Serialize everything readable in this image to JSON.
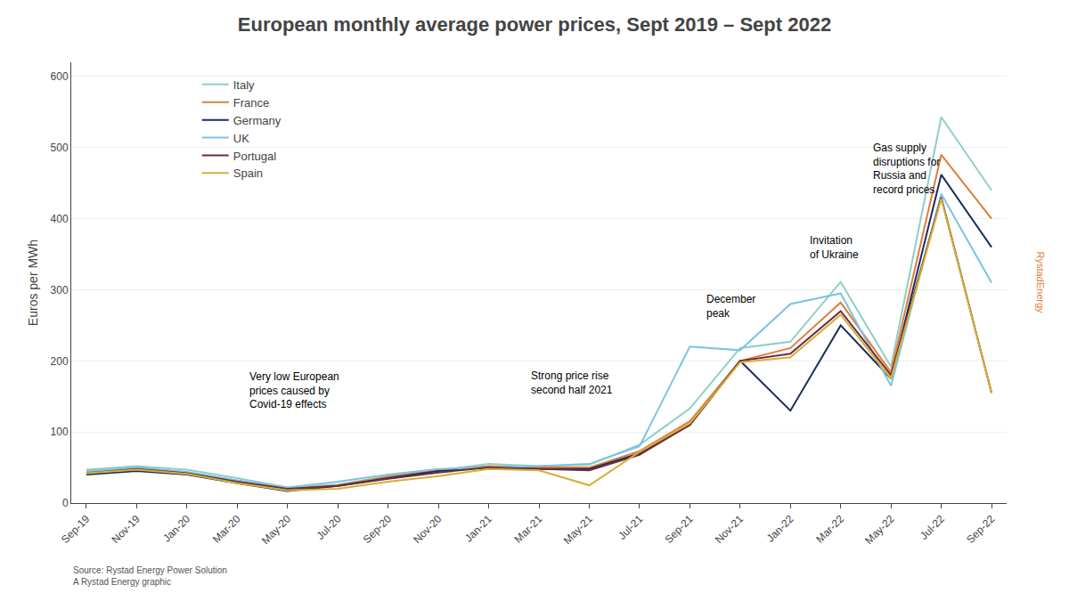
{
  "chart_data": {
    "type": "line",
    "title": "European monthly average power prices, Sept 2019 – Sept 2022",
    "ylabel": "Euros per MWh",
    "source": "Source: Rystad Energy Power Solution\nA Rystad Energy graphic",
    "credit": "RystadEnergy",
    "categories": [
      "Sep-19",
      "Nov-19",
      "Jan-20",
      "Mar-20",
      "May-20",
      "Jul-20",
      "Sep-20",
      "Nov-20",
      "Jan-21",
      "Mar-21",
      "May-21",
      "Jul-21",
      "Sep-21",
      "Nov-21",
      "Jan-22",
      "Mar-22",
      "May-22",
      "Jul-22",
      "Sep-22"
    ],
    "series": [
      {
        "name": "Italy",
        "color": "#8ecfc9",
        "values": [
          47,
          52,
          47,
          35,
          22,
          26,
          38,
          46,
          55,
          52,
          54,
          82,
          133,
          218,
          227,
          311,
          192,
          543,
          440
        ]
      },
      {
        "name": "France",
        "color": "#e07c3a",
        "values": [
          44,
          50,
          43,
          30,
          20,
          25,
          37,
          46,
          52,
          50,
          50,
          73,
          115,
          200,
          218,
          282,
          184,
          490,
          400
        ]
      },
      {
        "name": "Germany",
        "color": "#1a2e5a",
        "values": [
          40,
          45,
          40,
          28,
          17,
          24,
          35,
          45,
          50,
          48,
          48,
          70,
          110,
          200,
          130,
          250,
          175,
          462,
          360
        ]
      },
      {
        "name": "UK",
        "color": "#7bc4e2",
        "values": [
          45,
          50,
          44,
          32,
          22,
          30,
          40,
          48,
          50,
          52,
          55,
          80,
          220,
          215,
          280,
          295,
          165,
          435,
          310
        ]
      },
      {
        "name": "Portugal",
        "color": "#6b2d3e",
        "values": [
          42,
          48,
          42,
          30,
          20,
          24,
          34,
          43,
          50,
          48,
          46,
          68,
          110,
          200,
          210,
          270,
          180,
          430,
          155
        ]
      },
      {
        "name": "Spain",
        "color": "#d4af37",
        "values": [
          42,
          47,
          41,
          28,
          18,
          20,
          30,
          38,
          48,
          46,
          25,
          72,
          112,
          198,
          205,
          265,
          175,
          428,
          155
        ]
      }
    ],
    "annotations": [
      {
        "text": "Very low European\nprices caused by\nCovid-19 effects",
        "x": 3.2,
        "y": 128
      },
      {
        "text": "Strong price rise\nsecond half 2021",
        "x": 8.8,
        "y": 148
      },
      {
        "text": "December\npeak",
        "x": 12.3,
        "y": 255
      },
      {
        "text": "Invitation\nof Ukraine",
        "x": 14.35,
        "y": 338
      },
      {
        "text": "Gas supply\ndisruptions for\nRussia and\nrecord prices",
        "x": 15.6,
        "y": 430
      }
    ],
    "ylim": [
      0,
      620
    ],
    "yticks": [
      0,
      100,
      200,
      300,
      400,
      500,
      600
    ],
    "grid": true,
    "legend": "upper left"
  }
}
